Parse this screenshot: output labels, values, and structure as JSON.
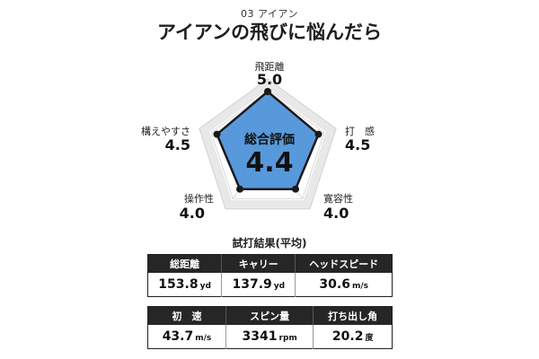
{
  "header": {
    "subtitle": "03 アイアン",
    "title": "アイアンの飛びに悩んだら"
  },
  "chart_data": {
    "type": "radar",
    "scale_max": 5,
    "axes": [
      {
        "label": "飛距離",
        "value": 5.0,
        "display": "5.0"
      },
      {
        "label": "打　感",
        "value": 4.5,
        "display": "4.5"
      },
      {
        "label": "寛容性",
        "value": 4.0,
        "display": "4.0"
      },
      {
        "label": "操作性",
        "value": 4.0,
        "display": "4.0"
      },
      {
        "label": "構えやすさ",
        "value": 4.5,
        "display": "4.5"
      }
    ],
    "overall_label": "総合評価",
    "overall_value": "4.4",
    "fill_color": "#4a90d9",
    "outline_color": "#1a1a1a",
    "grid": true
  },
  "results": {
    "title": "試打結果(平均)",
    "row1": {
      "headers": [
        "総距離",
        "キャリー",
        "ヘッドスピード"
      ],
      "values": [
        "153.8",
        "137.9",
        "30.6"
      ],
      "units": [
        "yd",
        "yd",
        "m/s"
      ]
    },
    "row2": {
      "headers": [
        "初　速",
        "スピン量",
        "打ち出し角"
      ],
      "values": [
        "43.7",
        "3341",
        "20.2"
      ],
      "units": [
        "m/s",
        "rpm",
        "度"
      ]
    }
  }
}
